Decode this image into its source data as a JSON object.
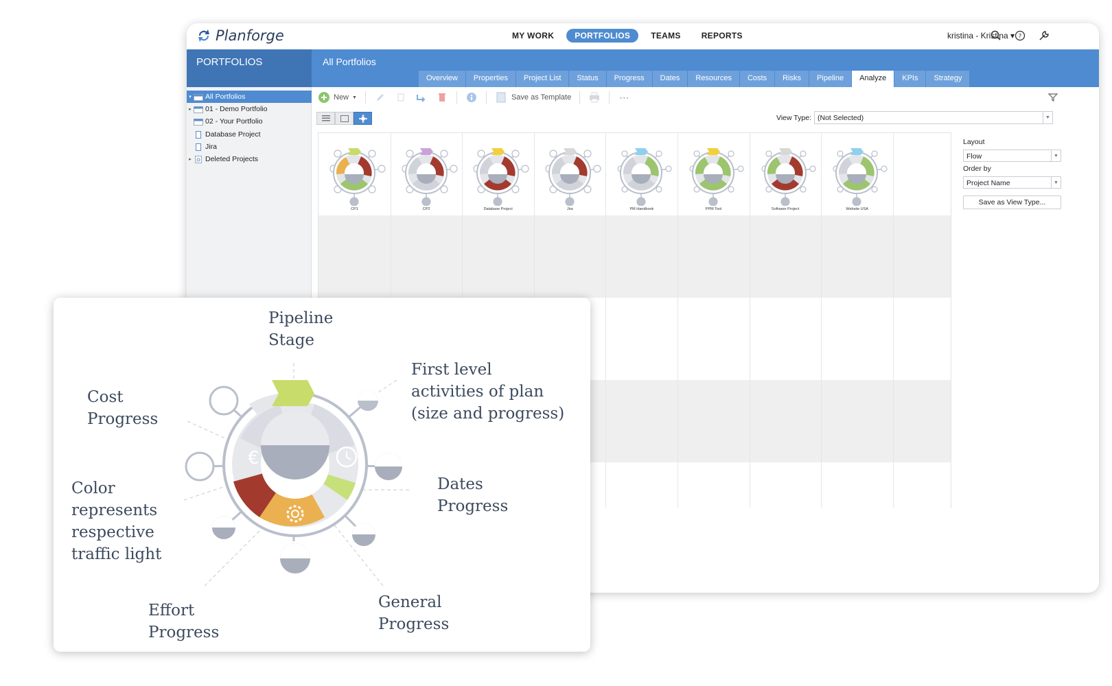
{
  "app": {
    "logo_text": "Planforge",
    "nav": [
      "MY WORK",
      "PORTFOLIOS",
      "TEAMS",
      "REPORTS"
    ],
    "nav_active": "PORTFOLIOS",
    "user": "kristina - Kristina ▾"
  },
  "sidebar": {
    "title": "PORTFOLIOS",
    "items": [
      {
        "label": "All Portfolios",
        "selected": true
      },
      {
        "label": "01 - Demo Portfolio"
      },
      {
        "label": "02 - Your Portfolio"
      },
      {
        "label": "Database Project"
      },
      {
        "label": "Jira"
      },
      {
        "label": "Deleted Projects"
      }
    ]
  },
  "main": {
    "title": "All Portfolios",
    "tabs": [
      "Overview",
      "Properties",
      "Project List",
      "Status",
      "Progress",
      "Dates",
      "Resources",
      "Costs",
      "Risks",
      "Pipeline",
      "Analyze",
      "KPIs",
      "Strategy"
    ],
    "active_tab": "Analyze",
    "toolbar": {
      "new_label": "New",
      "save_template_label": "Save as Template"
    },
    "view_type_label": "View Type:",
    "view_type_value": "(Not Selected)"
  },
  "projects": [
    {
      "name": "CP1",
      "stage_color": "#c7dc6a"
    },
    {
      "name": "CP2",
      "stage_color": "#c9a3d8"
    },
    {
      "name": "Database Project",
      "stage_color": "#f2cf3c"
    },
    {
      "name": "Jira",
      "stage_color": "#d8d8d8"
    },
    {
      "name": "PM Handbook",
      "stage_color": "#8fd0f0"
    },
    {
      "name": "PPM Tool",
      "stage_color": "#f2cf3c"
    },
    {
      "name": "Software Project",
      "stage_color": "#d8d8d8"
    },
    {
      "name": "Website USA",
      "stage_color": "#8fd0f0"
    }
  ],
  "right_panel": {
    "layout_label": "Layout",
    "layout_value": "Flow",
    "order_label": "Order by",
    "order_value": "Project Name",
    "save_button": "Save as View Type..."
  },
  "legend": {
    "pipeline": "Pipeline\nStage",
    "first_level": "First level\nactivities of plan\n(size and progress)",
    "cost": "Cost\nProgress",
    "color": "Color\nrepresents\nrespective\ntraffic light",
    "dates": "Dates\nProgress",
    "effort": "Effort\nProgress",
    "general": "General\nProgress"
  },
  "colors": {
    "accent": "#4f8bd0",
    "red": "#a33a2e",
    "green": "#9cc56e",
    "orange": "#ebb04f",
    "grey": "#b9bfcb"
  }
}
